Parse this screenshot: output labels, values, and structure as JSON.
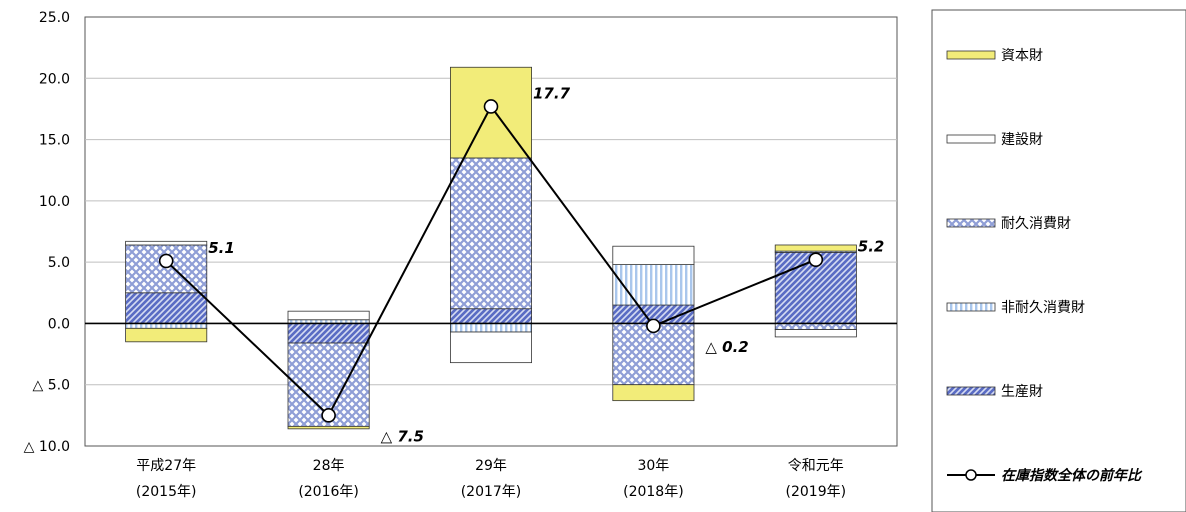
{
  "chart_data": {
    "type": "bar",
    "stacked": true,
    "categories": [
      {
        "line1": "平成27年",
        "line2": "(2015年)"
      },
      {
        "line1": "28年",
        "line2": "(2016年)"
      },
      {
        "line1": "29年",
        "line2": "(2017年)"
      },
      {
        "line1": "30年",
        "line2": "(2018年)"
      },
      {
        "line1": "令和元年",
        "line2": "(2019年)"
      }
    ],
    "ylim": [
      -10,
      25
    ],
    "yticks": [
      {
        "value": 25,
        "label": "25.0"
      },
      {
        "value": 20,
        "label": "20.0"
      },
      {
        "value": 15,
        "label": "15.0"
      },
      {
        "value": 10,
        "label": "10.0"
      },
      {
        "value": 5,
        "label": "5.0"
      },
      {
        "value": 0,
        "label": "0.0"
      },
      {
        "value": -5,
        "label": "△ 5.0"
      },
      {
        "value": -10,
        "label": "△ 10.0"
      }
    ],
    "grid": true,
    "legend_position": "right",
    "series": [
      {
        "name": "資本財",
        "color": "#f2ec79",
        "pattern": "solid",
        "values": [
          -1.1,
          -0.2,
          7.4,
          -1.3,
          0.5
        ]
      },
      {
        "name": "建設財",
        "color": "#ffffff",
        "pattern": "solid",
        "values": [
          0.3,
          0.7,
          -2.5,
          1.5,
          -0.6
        ]
      },
      {
        "name": "耐久消費財",
        "color": "#8f9ed6",
        "pattern": "crosshatch",
        "values": [
          3.9,
          -6.8,
          12.3,
          -5.0,
          -0.5
        ]
      },
      {
        "name": "非耐久消費財",
        "color": "#a9c6ec",
        "pattern": "vertical",
        "values": [
          -0.4,
          0.3,
          -0.7,
          3.3,
          0.1
        ]
      },
      {
        "name": "生産財",
        "color": "#5a6cc4",
        "pattern": "diagonal",
        "values": [
          2.5,
          -1.6,
          1.2,
          1.5,
          5.8
        ]
      }
    ],
    "line_series": {
      "name": "在庫指数全体の前年比",
      "values": [
        5.1,
        -7.5,
        17.7,
        -0.2,
        5.2
      ],
      "labels": [
        "5.1",
        "△ 7.5",
        "17.7",
        "△ 0.2",
        "5.2"
      ]
    }
  }
}
